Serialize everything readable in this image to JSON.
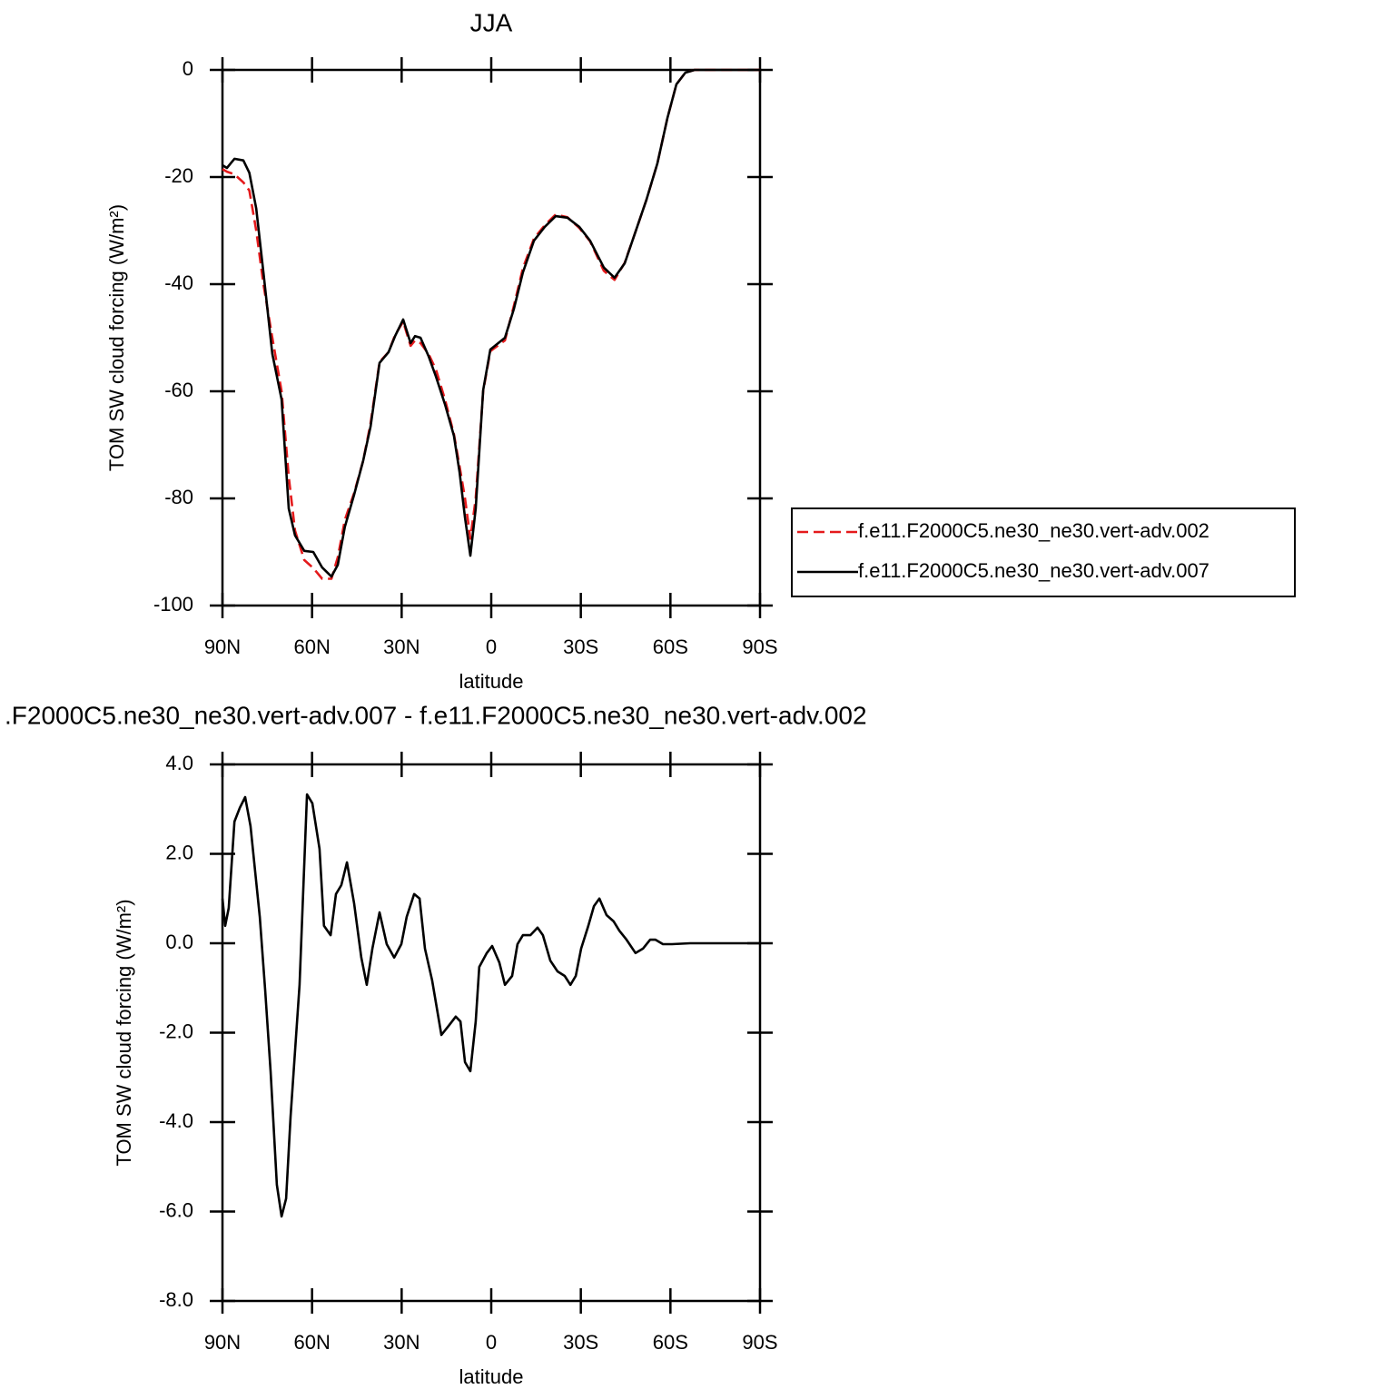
{
  "chart_data": [
    {
      "type": "line",
      "title": "JJA",
      "xlabel": "latitude",
      "ylabel": "TOM SW cloud forcing (W/m²)",
      "x": [
        90,
        88.5,
        86,
        83,
        81,
        78.7,
        76.3,
        73.3,
        70.2,
        67.8,
        65.7,
        62.6,
        59.6,
        56.6,
        53.5,
        51.4,
        49,
        45.9,
        42.9,
        40.4,
        37.4,
        34.4,
        32.2,
        29.5,
        27,
        25.5,
        23.7,
        21,
        18.5,
        15.5,
        12.5,
        10.6,
        8.8,
        7,
        5.2,
        2.7,
        0.3,
        -4.6,
        -7.6,
        -10.6,
        -14.3,
        -17.9,
        -21.6,
        -25.5,
        -29.5,
        -33.1,
        -37.7,
        -41.3,
        -44.7,
        -48.3,
        -52,
        -55.6,
        -59,
        -62,
        -65,
        -68.1,
        -90
      ],
      "series": [
        {
          "name": "f.e11.F2000C5.ne30_ne30.vert-adv.002",
          "color": "#e41a1c",
          "dash": true,
          "values": [
            -18.5,
            -19,
            -19.5,
            -21,
            -22.5,
            -30,
            -40,
            -50,
            -60,
            -76,
            -86,
            -91.5,
            -93,
            -95,
            -95,
            -91,
            -84,
            -79,
            -73,
            -66,
            -54.5,
            -52.7,
            -49.5,
            -47,
            -51.5,
            -50.5,
            -51,
            -53,
            -56,
            -61.5,
            -68,
            -74,
            -80,
            -87.5,
            -80,
            -60,
            -52.5,
            -50.5,
            -44,
            -37,
            -31.5,
            -29,
            -27,
            -27.5,
            -29.5,
            -32,
            -37.5,
            -39.2,
            -36,
            -30.2,
            -24.2,
            -17.5,
            -9,
            -2.7,
            -0.5,
            0,
            0
          ]
        },
        {
          "name": "f.e11.F2000C5.ne30_ne30.vert-adv.007",
          "color": "#000000",
          "dash": false,
          "values": [
            -17.8,
            -18.3,
            -16.6,
            -16.9,
            -19.2,
            -25.9,
            -37.8,
            -53,
            -61.5,
            -81.9,
            -86.9,
            -89.8,
            -90,
            -92.9,
            -94.6,
            -92.4,
            -85.3,
            -79.3,
            -73,
            -66.6,
            -54.7,
            -52.7,
            -49.7,
            -46.6,
            -51,
            -49.7,
            -50,
            -53.4,
            -57.3,
            -62.4,
            -68.3,
            -75.1,
            -83.6,
            -90.7,
            -81.9,
            -59.8,
            -52.2,
            -50,
            -44.6,
            -37.8,
            -31.9,
            -29.3,
            -27.3,
            -27.6,
            -29.3,
            -31.9,
            -36.9,
            -38.8,
            -36.1,
            -30.2,
            -24.2,
            -17.5,
            -9,
            -2.7,
            -0.5,
            0,
            0
          ]
        }
      ],
      "xlim": [
        90,
        -90
      ],
      "xticks": [
        {
          "value": 90,
          "label": "90N"
        },
        {
          "value": 60,
          "label": "60N"
        },
        {
          "value": 30,
          "label": "30N"
        },
        0,
        {
          "value": -30,
          "label": "30S"
        },
        {
          "value": -60,
          "label": "60S"
        },
        {
          "value": -90,
          "label": "90S"
        }
      ],
      "ylim": [
        -100,
        0
      ],
      "yticks": [
        0,
        -20,
        -40,
        -60,
        -80,
        -100
      ],
      "legend": "right"
    },
    {
      "type": "line",
      "title": ".F2000C5.ne30_ne30.vert-adv.007 - f.e11.F2000C5.ne30_ne30.vert-adv.002",
      "xlabel": "latitude",
      "ylabel": "TOM SW cloud forcing (W/m²)",
      "x": [
        90,
        89.1,
        87.9,
        86,
        84.2,
        82.4,
        80.6,
        77.5,
        75.7,
        73.9,
        71.8,
        70.2,
        68.7,
        67.2,
        64.2,
        61.7,
        59.9,
        57.5,
        56,
        53.8,
        52,
        50.2,
        48.3,
        45.9,
        43.5,
        41.7,
        39.8,
        37.4,
        35,
        32.5,
        30.1,
        28.3,
        25.8,
        24,
        22.2,
        19.8,
        16.7,
        14.3,
        11.9,
        10.3,
        8.8,
        7,
        5.2,
        4,
        1.5,
        -0.3,
        -2.7,
        -4.6,
        -7,
        -8.8,
        -10.6,
        -13.1,
        -15.5,
        -17.3,
        -19.8,
        -22.2,
        -24.6,
        -26.5,
        -28.3,
        -30.1,
        -32.5,
        -34.4,
        -36.2,
        -38.6,
        -41,
        -42.9,
        -45.3,
        -48.3,
        -50.8,
        -53.2,
        -55,
        -57.5,
        -60.5,
        -66.6,
        -90
      ],
      "series": [
        {
          "color": "#000000",
          "dash": false,
          "values": [
            1.0,
            0.39,
            0.79,
            2.72,
            3.03,
            3.27,
            2.62,
            0.59,
            -1.04,
            -2.86,
            -5.4,
            -6.11,
            -5.71,
            -3.88,
            -0.93,
            3.33,
            3.13,
            2.11,
            0.39,
            0.18,
            1.1,
            1.3,
            1.81,
            0.89,
            -0.32,
            -0.93,
            -0.12,
            0.69,
            -0.02,
            -0.32,
            -0.02,
            0.59,
            1.1,
            1.0,
            -0.12,
            -0.83,
            -2.05,
            -1.85,
            -1.64,
            -1.75,
            -2.66,
            -2.86,
            -1.75,
            -0.53,
            -0.22,
            -0.06,
            -0.43,
            -0.93,
            -0.73,
            -0.02,
            0.18,
            0.18,
            0.35,
            0.18,
            -0.39,
            -0.63,
            -0.73,
            -0.93,
            -0.73,
            -0.12,
            0.39,
            0.83,
            1.0,
            0.63,
            0.49,
            0.28,
            0.08,
            -0.22,
            -0.12,
            0.08,
            0.08,
            -0.02,
            -0.02,
            0,
            0
          ]
        }
      ],
      "xlim": [
        90,
        -90
      ],
      "xticks": [
        {
          "value": 90,
          "label": "90N"
        },
        {
          "value": 60,
          "label": "60N"
        },
        {
          "value": 30,
          "label": "30N"
        },
        0,
        {
          "value": -30,
          "label": "30S"
        },
        {
          "value": -60,
          "label": "60S"
        },
        {
          "value": -90,
          "label": "90S"
        }
      ],
      "ylim": [
        -8,
        4
      ],
      "yticks": [
        {
          "value": 4,
          "label": "4.0"
        },
        {
          "value": 2,
          "label": "2.0"
        },
        {
          "value": 0,
          "label": "0.0"
        },
        {
          "value": -2,
          "label": "-2.0"
        },
        {
          "value": -4,
          "label": "-4.0"
        },
        {
          "value": -6,
          "label": "-6.0"
        },
        {
          "value": -8,
          "label": "-8.0"
        }
      ]
    }
  ]
}
